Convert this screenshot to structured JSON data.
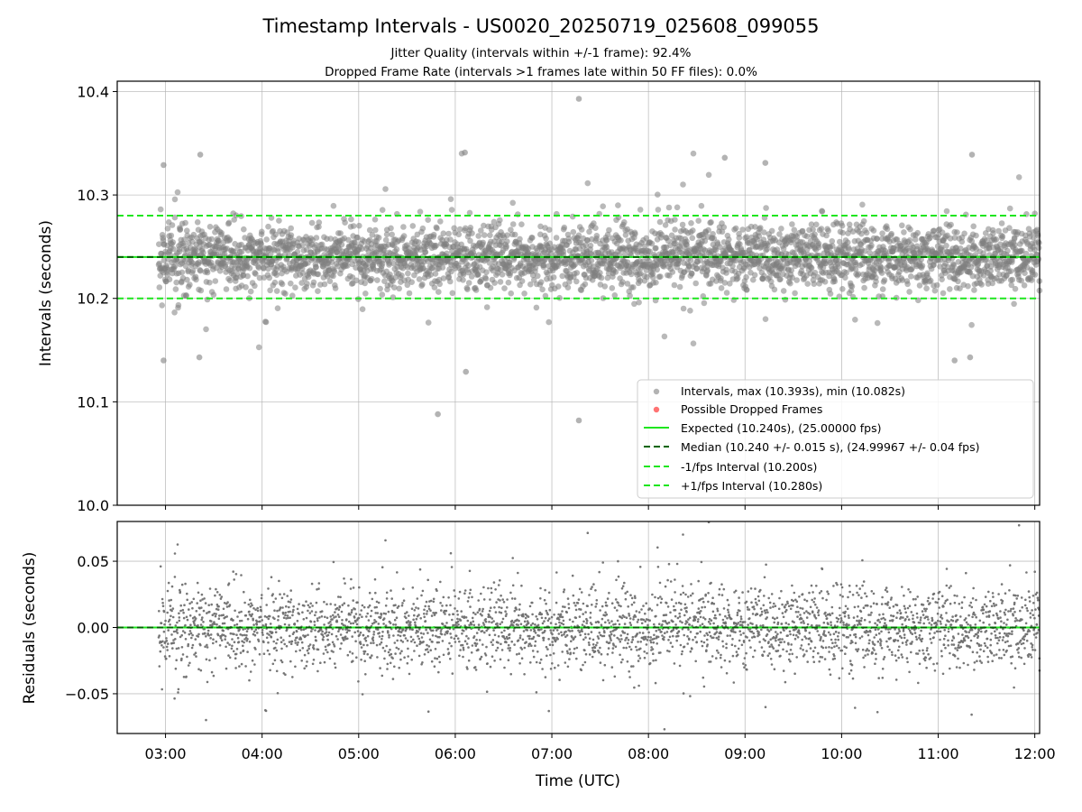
{
  "chart_data": [
    {
      "type": "scatter",
      "title": "Timestamp Intervals - US0020_20250719_025608_099055",
      "subtitle_lines": [
        "Jitter Quality (intervals within +/-1 frame): 92.4%",
        "Dropped Frame Rate (intervals >1 frames late within 50 FF files): 0.0%"
      ],
      "xlabel": "",
      "ylabel": "Intervals (seconds)",
      "x_range_hours": [
        2.5,
        12.05
      ],
      "ylim": [
        10.0,
        10.41
      ],
      "y_ticks": [
        10.0,
        10.1,
        10.2,
        10.3,
        10.4
      ],
      "y_tick_labels": [
        "10.0",
        "10.1",
        "10.2",
        "10.3",
        "10.4"
      ],
      "grid": true,
      "legend_position": "lower-right",
      "legend": [
        "Intervals, max (10.393s), min (10.082s)",
        "Possible Dropped Frames",
        "Expected (10.240s), (25.00000 fps)",
        "Median (10.240 +/- 0.015 s), (24.99967 +/- 0.04 fps)",
        "-1/fps Interval (10.200s)",
        "+1/fps Interval (10.280s)"
      ],
      "reference_lines": {
        "expected": 10.24,
        "median": 10.24,
        "minus_one_fps": 10.2,
        "plus_one_fps": 10.28
      },
      "series_summary": {
        "max": 10.393,
        "min": 10.082,
        "median": 10.24,
        "spread": 0.015,
        "start_hour": 2.93,
        "end_hour": 12.05
      },
      "notable_points": [
        {
          "x": 7.28,
          "y": 10.393
        },
        {
          "x": 7.28,
          "y": 10.082
        },
        {
          "x": 5.82,
          "y": 10.088
        },
        {
          "x": 2.98,
          "y": 10.14
        },
        {
          "x": 3.35,
          "y": 10.143
        },
        {
          "x": 6.11,
          "y": 10.129
        },
        {
          "x": 11.17,
          "y": 10.14
        },
        {
          "x": 11.33,
          "y": 10.143
        },
        {
          "x": 2.98,
          "y": 10.329
        },
        {
          "x": 3.36,
          "y": 10.339
        },
        {
          "x": 6.1,
          "y": 10.341
        },
        {
          "x": 8.79,
          "y": 10.336
        },
        {
          "x": 11.35,
          "y": 10.339
        },
        {
          "x": 9.21,
          "y": 10.331
        }
      ],
      "colors": {
        "points": "#808080",
        "expected": "#1ee61e",
        "median": "#006400",
        "bounds": "#1ee61e",
        "dropped": "#ff5050"
      }
    },
    {
      "type": "scatter",
      "xlabel": "Time (UTC)",
      "ylabel": "Residuals (seconds)",
      "x_range_hours": [
        2.5,
        12.05
      ],
      "ylim": [
        -0.08,
        0.08
      ],
      "y_ticks": [
        0.05,
        0.0,
        -0.05
      ],
      "y_tick_labels": [
        "0.05",
        "0.00",
        "−0.05"
      ],
      "x_ticks": [
        "03:00",
        "04:00",
        "05:00",
        "06:00",
        "07:00",
        "08:00",
        "09:00",
        "10:00",
        "11:00",
        "12:00"
      ],
      "grid": true,
      "zero_line": 0.0,
      "colors": {
        "points": "#707070",
        "zero_expected": "#1ee61e",
        "zero_median": "#006400"
      }
    }
  ]
}
